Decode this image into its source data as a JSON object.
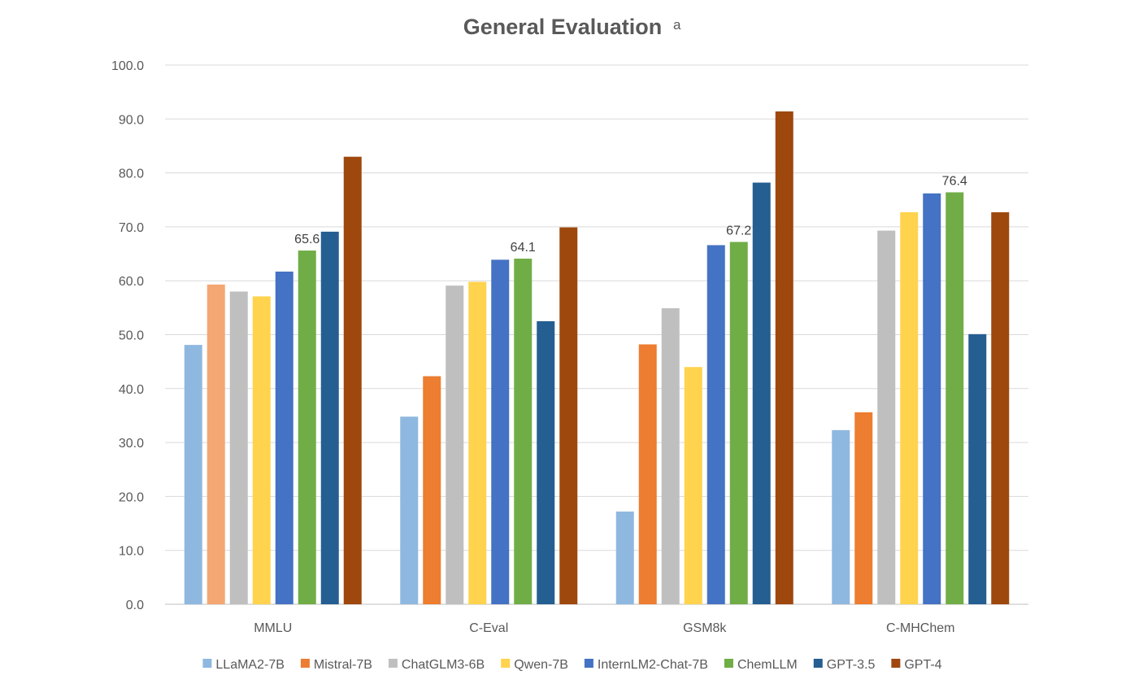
{
  "chart_data": {
    "type": "bar",
    "title": "General Evaluation",
    "title_superscript": "a",
    "xlabel": "",
    "ylabel": "",
    "ylim": [
      0,
      100
    ],
    "yticks": [
      "0.0",
      "10.0",
      "20.0",
      "30.0",
      "40.0",
      "50.0",
      "60.0",
      "70.0",
      "80.0",
      "90.0",
      "100.0"
    ],
    "grid": true,
    "legend_position": "bottom",
    "categories": [
      "MMLU",
      "C-Eval",
      "GSM8k",
      "C-MHChem"
    ],
    "series": [
      {
        "name": "LLaMA2-7B",
        "color": "#8fb8e0",
        "values": [
          48.1,
          34.8,
          17.2,
          32.3
        ]
      },
      {
        "name": "Mistral-7B",
        "color": "#ed7d31",
        "values": [
          59.3,
          42.3,
          48.2,
          35.6
        ]
      },
      {
        "name": "ChatGLM3-6B",
        "color": "#bfbfbf",
        "values": [
          58.0,
          59.1,
          54.9,
          69.3
        ]
      },
      {
        "name": "Qwen-7B",
        "color": "#ffd34d",
        "values": [
          57.1,
          59.8,
          44.0,
          72.7
        ]
      },
      {
        "name": "InternLM2-Chat-7B",
        "color": "#4472c4",
        "values": [
          61.7,
          63.9,
          66.6,
          76.2
        ]
      },
      {
        "name": "ChemLLM",
        "color": "#70ad47",
        "values": [
          65.6,
          64.1,
          67.2,
          76.4
        ]
      },
      {
        "name": "GPT-3.5",
        "color": "#255e91",
        "values": [
          69.1,
          52.5,
          78.2,
          50.1
        ]
      },
      {
        "name": "GPT-4",
        "color": "#9e480e",
        "values": [
          83.0,
          69.9,
          91.4,
          72.7
        ]
      }
    ],
    "highlight_bar_color": "#f4a773",
    "data_labels": [
      {
        "category": "MMLU",
        "series": "ChemLLM",
        "text": "65.6"
      },
      {
        "category": "C-Eval",
        "series": "ChemLLM",
        "text": "64.1"
      },
      {
        "category": "GSM8k",
        "series": "ChemLLM",
        "text": "67.2"
      },
      {
        "category": "C-MHChem",
        "series": "ChemLLM",
        "text": "76.4"
      }
    ]
  }
}
